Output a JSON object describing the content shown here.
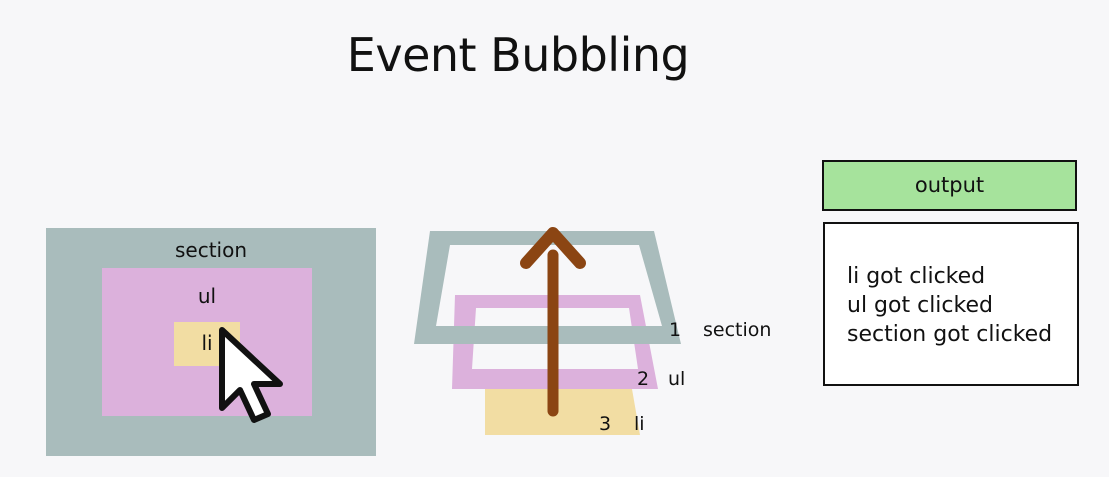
{
  "title": "Event Bubbling",
  "left_diagram": {
    "section_label": "section",
    "ul_label": "ul",
    "li_label": "li"
  },
  "layers": [
    {
      "number": "1",
      "name": "section"
    },
    {
      "number": "2",
      "name": "ul"
    },
    {
      "number": "3",
      "name": "li"
    }
  ],
  "output": {
    "header": "output",
    "lines": [
      "li got clicked",
      "ul got clicked",
      "section got clicked"
    ]
  },
  "colors": {
    "section": "#a9bcbc",
    "ul": "#dcb1dc",
    "li": "#f2dda3",
    "arrow": "#8b4513",
    "output_header": "#a6e39c"
  }
}
